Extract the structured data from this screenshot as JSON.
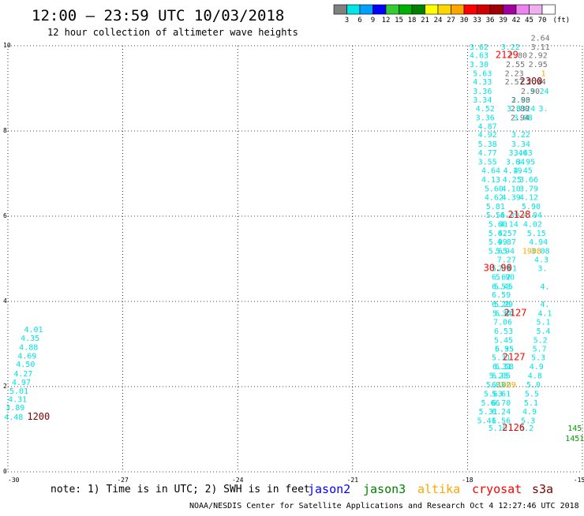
{
  "header": {
    "title": "12:00 – 23:59 UTC 10/03/2018",
    "subtitle": "12 hour collection of altimeter wave heights"
  },
  "color_scale": {
    "labels": [
      "3",
      "6",
      "9",
      "12",
      "15",
      "18",
      "21",
      "24",
      "27",
      "30",
      "33",
      "36",
      "39",
      "42",
      "45",
      "70"
    ],
    "unit": "(ft)",
    "colors": [
      "#808080",
      "#00e5e5",
      "#00a0ff",
      "#0000ff",
      "#33cc33",
      "#00b000",
      "#008000",
      "#ffff00",
      "#ffd700",
      "#ffa500",
      "#ff0000",
      "#d00000",
      "#a00000",
      "#a000a0",
      "#ee82ee",
      "#f0b0f0",
      "#ffffff"
    ]
  },
  "footer": {
    "note": "note:  1) Time is in UTC;  2) SWH is in feet",
    "satellites": [
      {
        "name": "jason2",
        "color": "#0000ff"
      },
      {
        "name": "jason3",
        "color": "#008000"
      },
      {
        "name": "altika",
        "color": "#ffa500"
      },
      {
        "name": "cryosat",
        "color": "#ff0000"
      },
      {
        "name": "s3a",
        "color": "#800000"
      }
    ],
    "credit": "NOAA/NESDIS Center for Satellite Applications and Research    Oct  4 12:27:46 UTC 2018"
  },
  "chart_data": {
    "type": "scatter",
    "title": "12:00 – 23:59 UTC 10/03/2018",
    "subtitle": "12 hour collection of altimeter wave heights",
    "xlim": [
      -30,
      -15
    ],
    "ylim": [
      0,
      10
    ],
    "x_ticks": [
      "-30",
      "-27",
      "-24",
      "-21",
      "-18",
      "-15"
    ],
    "y_ticks": [
      "0",
      "2",
      "4",
      "6",
      "8",
      "10"
    ],
    "x_tick_values": [
      -30,
      -27,
      -24,
      -21,
      -18,
      -15
    ],
    "y_tick_values": [
      0,
      2,
      4,
      6,
      8,
      10
    ],
    "grid": true,
    "series": [
      {
        "color": "#00e5e5",
        "points": [
          [
            -29.33,
            3.28,
            "4.01"
          ],
          [
            -29.42,
            3.07,
            "4.35"
          ],
          [
            -29.46,
            2.86,
            "4.88"
          ],
          [
            -29.5,
            2.66,
            "4.69"
          ],
          [
            -29.54,
            2.46,
            "4.50"
          ],
          [
            -29.6,
            2.24,
            "4.27"
          ],
          [
            -29.65,
            2.04,
            "4.97"
          ],
          [
            -29.71,
            1.83,
            "5.01"
          ],
          [
            -29.75,
            1.64,
            "4.31"
          ],
          [
            -29.81,
            1.44,
            "3.89"
          ],
          [
            -29.85,
            1.22,
            "4.48"
          ]
        ]
      },
      {
        "color": "#00e5e5",
        "points": [
          [
            -17.7,
            9.91,
            "3.62"
          ],
          [
            -17.7,
            9.71,
            "4.63"
          ],
          [
            -17.7,
            9.5,
            "3.30"
          ],
          [
            -17.61,
            9.29,
            "5.63"
          ],
          [
            -17.61,
            9.09,
            "4.33"
          ],
          [
            -17.61,
            8.87,
            "3.36"
          ],
          [
            -17.61,
            8.67,
            "3.34"
          ],
          [
            -17.54,
            8.46,
            "4.52"
          ],
          [
            -17.54,
            8.25,
            "3.36"
          ],
          [
            -17.48,
            8.05,
            "4.87"
          ],
          [
            -17.48,
            7.85,
            "4.92"
          ],
          [
            -17.48,
            7.63,
            "5.38"
          ],
          [
            -17.48,
            7.43,
            "4.77"
          ],
          [
            -17.48,
            7.21,
            "3.55"
          ],
          [
            -17.39,
            7.01,
            "4.64"
          ],
          [
            -17.39,
            6.8,
            "4.13"
          ],
          [
            -17.31,
            6.58,
            "5.60"
          ],
          [
            -17.31,
            6.38,
            "4.62"
          ],
          [
            -17.27,
            6.17,
            "5.81"
          ],
          [
            -17.27,
            5.96,
            "5.56"
          ],
          [
            -17.21,
            5.75,
            "5.60"
          ],
          [
            -17.21,
            5.54,
            "5.62"
          ],
          [
            -17.21,
            5.33,
            "5.99"
          ],
          [
            -17.21,
            5.12,
            "5.65"
          ],
          [
            -17.12,
            4.71,
            "5.89"
          ],
          [
            -17.12,
            4.51,
            "6.62"
          ],
          [
            -17.12,
            4.29,
            "6.53"
          ],
          [
            -17.12,
            4.09,
            "6.59"
          ],
          [
            -17.12,
            3.87,
            "6.28"
          ],
          [
            -17.1,
            3.66,
            "5.34"
          ],
          [
            -17.08,
            3.45,
            "7.06"
          ],
          [
            -17.06,
            3.24,
            "6.53"
          ],
          [
            -17.06,
            3.03,
            "5.45"
          ],
          [
            -17.04,
            2.82,
            "5.35"
          ],
          [
            -17.12,
            2.62,
            "5.31"
          ],
          [
            -17.04,
            2.41,
            "6.58"
          ],
          [
            -17.19,
            2.19,
            "5.23"
          ],
          [
            -17.27,
            1.98,
            "5.81"
          ],
          [
            -17.33,
            1.77,
            "5.63"
          ],
          [
            -17.4,
            1.56,
            "5.66"
          ],
          [
            -17.46,
            1.35,
            "5.31"
          ],
          [
            -17.5,
            1.14,
            "5.41"
          ],
          [
            -16.88,
            9.91,
            "3.22"
          ],
          [
            -16.61,
            8.67,
            "3.83"
          ],
          [
            -16.48,
            8.46,
            "3.24"
          ],
          [
            -16.73,
            8.46,
            "3.63"
          ],
          [
            -16.55,
            8.25,
            "3.08"
          ],
          [
            -16.61,
            7.85,
            "3.22"
          ],
          [
            -16.61,
            7.63,
            "3.34"
          ],
          [
            -16.68,
            7.43,
            "3.46"
          ],
          [
            -16.55,
            7.43,
            "3.43"
          ],
          [
            -16.75,
            7.21,
            "3.64"
          ],
          [
            -16.48,
            7.21,
            "3.95"
          ],
          [
            -16.82,
            7.01,
            "4.19"
          ],
          [
            -16.55,
            7.01,
            "4.45"
          ],
          [
            -16.84,
            6.8,
            "4.25"
          ],
          [
            -16.4,
            6.8,
            "3.66"
          ],
          [
            -16.86,
            6.58,
            "4.10"
          ],
          [
            -16.4,
            6.58,
            "3.79"
          ],
          [
            -16.86,
            6.38,
            "4.39"
          ],
          [
            -16.4,
            6.38,
            "4.12"
          ],
          [
            -16.34,
            6.17,
            "5.90"
          ],
          [
            -16.9,
            5.96,
            "4.29"
          ],
          [
            -16.3,
            5.96,
            "4.04"
          ],
          [
            -16.92,
            5.75,
            "4.14"
          ],
          [
            -16.3,
            5.75,
            "4.02"
          ],
          [
            -16.96,
            5.54,
            "4.57"
          ],
          [
            -16.2,
            5.54,
            "5.15"
          ],
          [
            -16.98,
            5.33,
            "4.87"
          ],
          [
            -16.15,
            5.33,
            "4.94"
          ],
          [
            -17.02,
            5.12,
            "5.94"
          ],
          [
            -16.1,
            5.12,
            "3.08"
          ],
          [
            -16.98,
            4.92,
            "7.27"
          ],
          [
            -16.07,
            4.92,
            "4.3"
          ],
          [
            -16.96,
            4.71,
            "7.91"
          ],
          [
            -16.04,
            4.71,
            "3."
          ],
          [
            -17.02,
            4.51,
            "5.90"
          ],
          [
            -17.06,
            4.29,
            "5.45"
          ],
          [
            -17.06,
            3.87,
            "5.29"
          ],
          [
            -17.04,
            3.66,
            "6.44"
          ],
          [
            -17.04,
            2.82,
            "6.95"
          ],
          [
            -17.1,
            2.41,
            "6.31"
          ],
          [
            -17.12,
            2.19,
            "6.05"
          ],
          [
            -17.12,
            1.98,
            "6.02"
          ],
          [
            -17.12,
            1.77,
            "5.61"
          ],
          [
            -17.12,
            1.56,
            "6.70"
          ],
          [
            -17.12,
            1.35,
            "6.24"
          ],
          [
            -17.12,
            1.14,
            "6.56"
          ],
          [
            -17.21,
            0.96,
            "5.10"
          ],
          [
            -16.12,
            8.87,
            "3.24"
          ],
          [
            -16.02,
            8.46,
            "3."
          ],
          [
            -15.98,
            4.29,
            "4."
          ],
          [
            -15.98,
            3.87,
            "4."
          ],
          [
            -15.98,
            3.66,
            "4.1"
          ],
          [
            -16.02,
            3.45,
            "5.1"
          ],
          [
            -16.02,
            3.24,
            "5.4"
          ],
          [
            -16.1,
            3.03,
            "5.2"
          ],
          [
            -16.12,
            2.82,
            "5.7"
          ],
          [
            -16.15,
            2.62,
            "5.3"
          ],
          [
            -16.2,
            2.41,
            "4.9"
          ],
          [
            -16.24,
            2.19,
            "4.8"
          ],
          [
            -16.28,
            1.98,
            "5.0"
          ],
          [
            -16.32,
            1.77,
            "5.5"
          ],
          [
            -16.34,
            1.56,
            "5.1"
          ],
          [
            -16.38,
            1.35,
            "4.9"
          ],
          [
            -16.42,
            1.14,
            "5.3"
          ],
          [
            -16.46,
            0.96,
            "5.2"
          ]
        ]
      },
      {
        "color": "#707070",
        "points": [
          [
            -16.1,
            10.12,
            "2.64"
          ],
          [
            -16.1,
            9.91,
            "3.11"
          ],
          [
            -16.69,
            9.71,
            "2.80"
          ],
          [
            -16.16,
            9.71,
            "2.92"
          ],
          [
            -16.75,
            9.5,
            "2.55"
          ],
          [
            -16.16,
            9.5,
            "2.95"
          ],
          [
            -16.78,
            9.29,
            "2.23"
          ],
          [
            -16.2,
            9.09,
            "2.94"
          ],
          [
            -16.78,
            9.09,
            "2.57"
          ],
          [
            -16.36,
            8.87,
            "2.90"
          ],
          [
            -16.61,
            8.67,
            "2.90"
          ],
          [
            -16.63,
            8.46,
            "2.80"
          ],
          [
            -16.63,
            8.25,
            "2.94"
          ]
        ]
      },
      {
        "color": "#ffa500",
        "points": [
          [
            -16.02,
            9.29,
            "1"
          ],
          [
            -16.32,
            5.12,
            "1908"
          ],
          [
            -16.98,
            1.98,
            "1909"
          ]
        ]
      },
      {
        "color": "#00a000",
        "points": [
          [
            -15.2,
            0.96,
            "145"
          ],
          [
            -15.2,
            0.72,
            "1451"
          ]
        ]
      }
    ],
    "time_labels": [
      {
        "x": -29.2,
        "y": 1.22,
        "text": "1200",
        "color": "#800000"
      },
      {
        "x": -16.97,
        "y": 9.71,
        "text": "2129",
        "color": "#ff0000"
      },
      {
        "x": -16.34,
        "y": 9.09,
        "text": "2300",
        "color": "#800000"
      },
      {
        "x": -16.65,
        "y": 5.96,
        "text": "2128",
        "color": "#ff0000"
      },
      {
        "x": -17.21,
        "y": 4.71,
        "text": "30.90",
        "color": "#ff0000"
      },
      {
        "x": -16.75,
        "y": 3.66,
        "text": "2127",
        "color": "#ff0000"
      },
      {
        "x": -16.79,
        "y": 2.62,
        "text": "2127",
        "color": "#ff0000"
      },
      {
        "x": -16.8,
        "y": 0.96,
        "text": "2126",
        "color": "#ff0000"
      }
    ]
  }
}
